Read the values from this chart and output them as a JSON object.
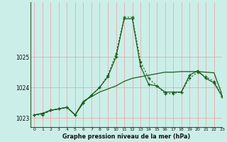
{
  "title": "Graphe pression niveau de la mer (hPa)",
  "bg_color": "#cceee8",
  "grid_color": "#e8a0a0",
  "line_color": "#1a5c1a",
  "xlim": [
    -0.5,
    23
  ],
  "ylim": [
    1022.7,
    1026.8
  ],
  "yticks": [
    1023,
    1024,
    1025
  ],
  "xticks": [
    0,
    1,
    2,
    3,
    4,
    5,
    6,
    7,
    8,
    9,
    10,
    11,
    12,
    13,
    14,
    15,
    16,
    17,
    18,
    19,
    20,
    21,
    22,
    23
  ],
  "series_dotted": [
    1023.1,
    1023.1,
    1023.25,
    1023.3,
    1023.35,
    1023.1,
    1023.5,
    1023.75,
    1024.0,
    1024.4,
    1025.1,
    1026.3,
    1026.3,
    1024.85,
    1024.3,
    1024.05,
    1023.8,
    1023.8,
    1023.85,
    1024.3,
    1024.5,
    1024.35,
    1024.2,
    1023.7
  ],
  "series_solid_markers": [
    1023.1,
    1023.15,
    1023.25,
    1023.3,
    1023.35,
    1023.1,
    1023.5,
    1023.75,
    1024.0,
    1024.35,
    1025.0,
    1026.25,
    1026.25,
    1024.7,
    1024.1,
    1024.05,
    1023.85,
    1023.85,
    1023.85,
    1024.4,
    1024.55,
    1024.3,
    1024.15,
    1023.7
  ],
  "series_smooth": [
    1023.1,
    1023.15,
    1023.25,
    1023.3,
    1023.35,
    1023.1,
    1023.55,
    1023.7,
    1023.85,
    1023.95,
    1024.05,
    1024.2,
    1024.3,
    1024.35,
    1024.4,
    1024.45,
    1024.5,
    1024.5,
    1024.52,
    1024.52,
    1024.52,
    1024.5,
    1024.48,
    1023.75
  ]
}
